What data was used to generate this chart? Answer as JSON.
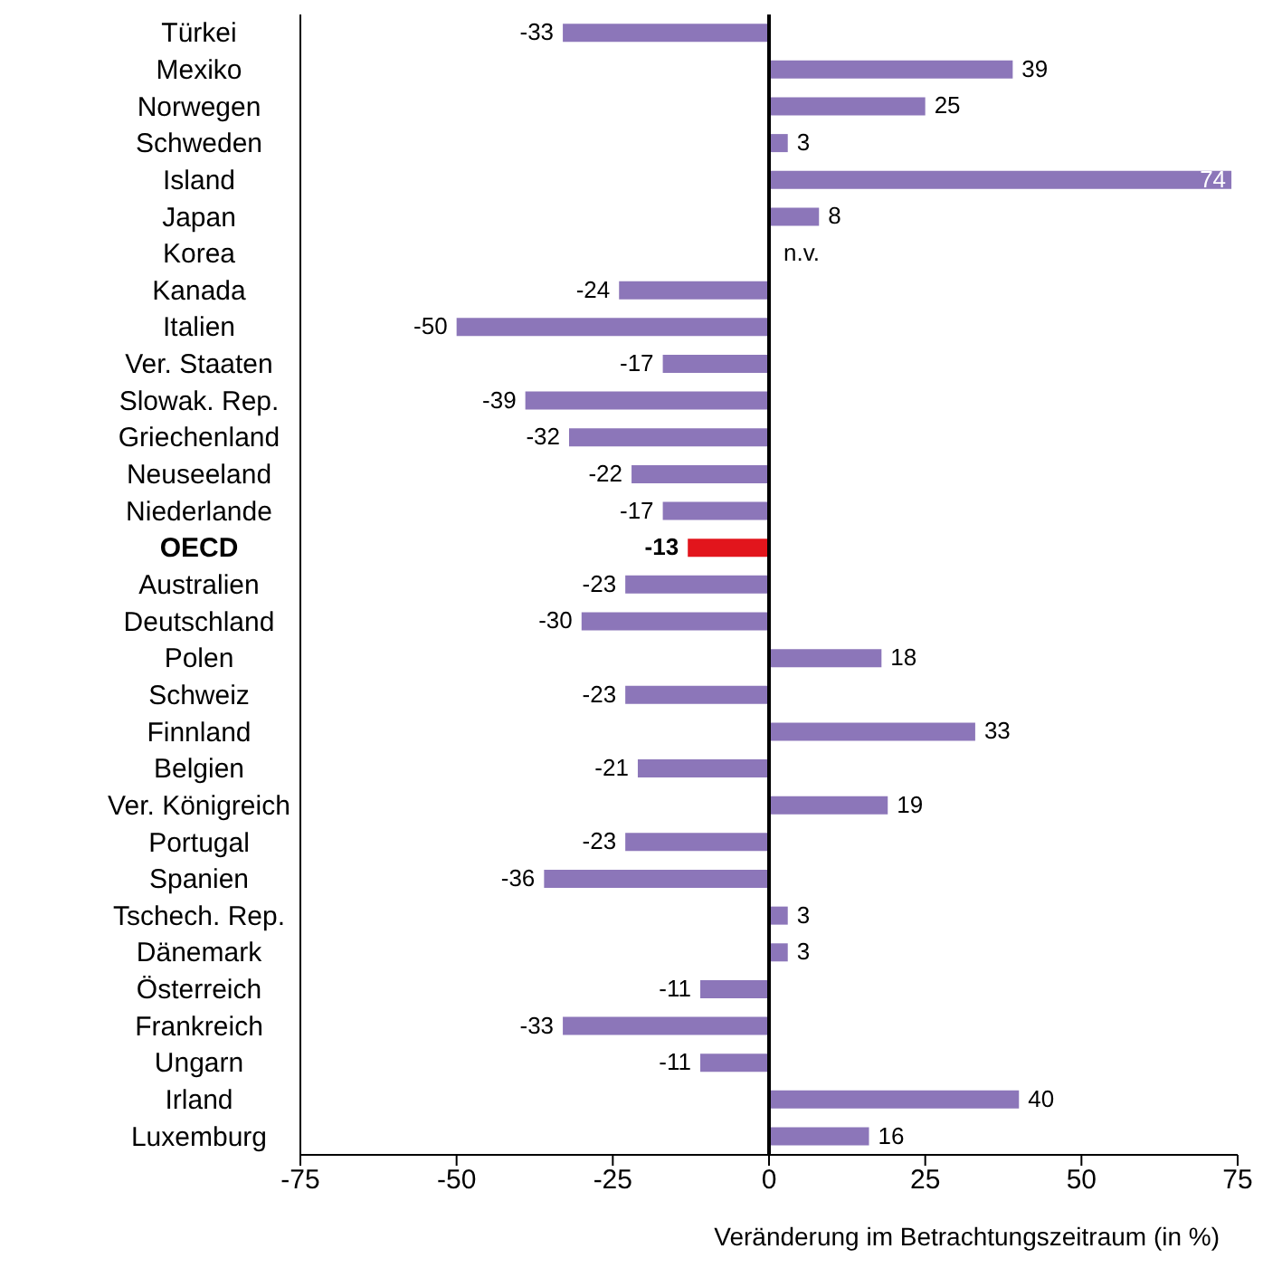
{
  "chart_data": {
    "type": "bar",
    "orientation": "horizontal",
    "xlabel": "Veränderung im Betrachtungszeitraum (in %)",
    "categories": [
      "Türkei",
      "Mexiko",
      "Norwegen",
      "Schweden",
      "Island",
      "Japan",
      "Korea",
      "Kanada",
      "Italien",
      "Ver. Staaten",
      "Slowak. Rep.",
      "Griechenland",
      "Neuseeland",
      "Niederlande",
      "OECD",
      "Australien",
      "Deutschland",
      "Polen",
      "Schweiz",
      "Finnland",
      "Belgien",
      "Ver. Königreich",
      "Portugal",
      "Spanien",
      "Tschech. Rep.",
      "Dänemark",
      "Österreich",
      "Frankreich",
      "Ungarn",
      "Irland",
      "Luxemburg"
    ],
    "values": [
      -33,
      39,
      25,
      3,
      74,
      8,
      null,
      -24,
      -50,
      -17,
      -39,
      -32,
      -22,
      -17,
      -13,
      -23,
      -30,
      18,
      -23,
      33,
      -21,
      19,
      -23,
      -36,
      3,
      3,
      -11,
      -33,
      -11,
      40,
      16
    ],
    "value_labels": [
      "-33",
      "39",
      "25",
      "3",
      "74",
      "8",
      "n.v.",
      "-24",
      "-50",
      "-17",
      "-39",
      "-32",
      "-22",
      "-17",
      "-13",
      "-23",
      "-30",
      "18",
      "-23",
      "33",
      "-21",
      "19",
      "-23",
      "-36",
      "3",
      "3",
      "-11",
      "-33",
      "-11",
      "40",
      "16"
    ],
    "colors": [
      "#8c76b9",
      "#8c76b9",
      "#8c76b9",
      "#8c76b9",
      "#8c76b9",
      "#8c76b9",
      "#8c76b9",
      "#8c76b9",
      "#8c76b9",
      "#8c76b9",
      "#8c76b9",
      "#8c76b9",
      "#8c76b9",
      "#8c76b9",
      "#e2151c",
      "#8c76b9",
      "#8c76b9",
      "#8c76b9",
      "#8c76b9",
      "#8c76b9",
      "#8c76b9",
      "#8c76b9",
      "#8c76b9",
      "#8c76b9",
      "#8c76b9",
      "#8c76b9",
      "#8c76b9",
      "#8c76b9",
      "#8c76b9",
      "#8c76b9",
      "#8c76b9"
    ],
    "xlim": [
      -75,
      75
    ],
    "xticks": [
      -75,
      -50,
      -25,
      0,
      25,
      50,
      75
    ],
    "ref_lines": [
      {
        "axis": "x",
        "value": 0,
        "color": "#000000"
      }
    ]
  }
}
